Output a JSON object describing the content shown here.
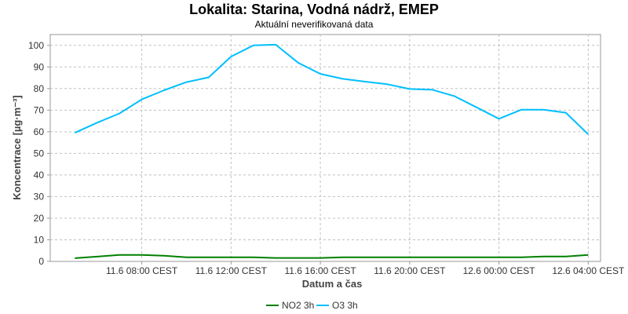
{
  "chart_data": {
    "type": "line",
    "title": "Lokalita: Starina, Vodná nádrž, EMEP",
    "subtitle": "Aktuální neverifikovaná data",
    "xlabel": "Datum a čas",
    "ylabel": "Koncentrace [µg·m⁻³]",
    "ylim": [
      0,
      105
    ],
    "y_ticks": [
      0,
      10,
      20,
      30,
      40,
      50,
      60,
      70,
      80,
      90,
      100
    ],
    "x_ticks": [
      {
        "x": 3,
        "label": "11.6 08:00 CEST"
      },
      {
        "x": 7,
        "label": "11.6 12:00 CEST"
      },
      {
        "x": 11,
        "label": "11.6 16:00 CEST"
      },
      {
        "x": 15,
        "label": "11.6 20:00 CEST"
      },
      {
        "x": 19,
        "label": "12.6 00:00 CEST"
      },
      {
        "x": 23,
        "label": "12.6 04:00 CEST"
      }
    ],
    "x": [
      0,
      1,
      2,
      3,
      4,
      5,
      6,
      7,
      8,
      9,
      10,
      11,
      12,
      13,
      14,
      15,
      16,
      17,
      18,
      19,
      20,
      21,
      22,
      23
    ],
    "xlim": [
      -1.1,
      23.55
    ],
    "grid": true,
    "legend": "bottom",
    "series": [
      {
        "name": "NO2 3h",
        "color": "#008000",
        "values": [
          1.5,
          2.2,
          3.0,
          3.0,
          2.6,
          1.9,
          1.9,
          1.9,
          1.9,
          1.6,
          1.6,
          1.6,
          1.9,
          1.9,
          1.9,
          1.9,
          1.9,
          1.9,
          1.9,
          1.9,
          1.9,
          2.3,
          2.3,
          3.0
        ]
      },
      {
        "name": "O3 3h",
        "color": "#00BFFF",
        "values": [
          59.5,
          64.2,
          68.5,
          75.0,
          79.2,
          83.0,
          85.2,
          94.8,
          100.0,
          100.3,
          92.0,
          86.8,
          84.5,
          83.2,
          82.0,
          79.8,
          79.5,
          76.5,
          71.3,
          66.0,
          70.2,
          70.2,
          68.8,
          58.8
        ]
      }
    ]
  }
}
